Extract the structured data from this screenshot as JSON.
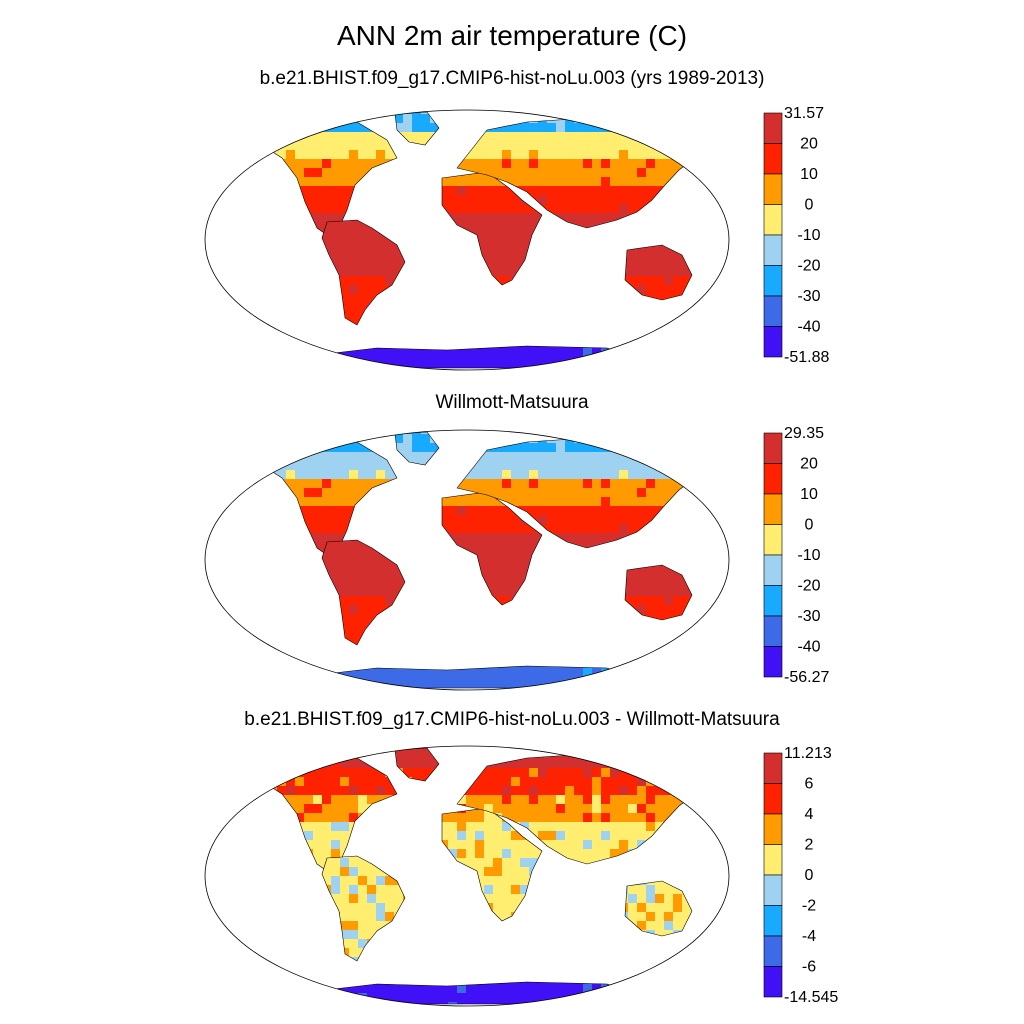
{
  "figure": {
    "title": "ANN 2m air temperature (C)",
    "panels": [
      {
        "title": "b.e21.BHIST.f09_g17.CMIP6-hist-noLu.003 (yrs 1989-2013)",
        "colorbar": {
          "labels": [
            "31.57",
            "20",
            "10",
            "0",
            "-10",
            "-20",
            "-30",
            "-40",
            "-51.88"
          ],
          "colors": [
            "#d42f2f",
            "#ff2200",
            "#ff9a00",
            "#ffee70",
            "#9fd2f0",
            "#17aaff",
            "#3d6ae6",
            "#4011f6"
          ]
        }
      },
      {
        "title": "Willmott-Matsuura",
        "colorbar": {
          "labels": [
            "29.35",
            "20",
            "10",
            "0",
            "-10",
            "-20",
            "-30",
            "-40",
            "-56.27"
          ],
          "colors": [
            "#d42f2f",
            "#ff2200",
            "#ff9a00",
            "#ffee70",
            "#9fd2f0",
            "#17aaff",
            "#3d6ae6",
            "#4011f6"
          ]
        }
      },
      {
        "title": "b.e21.BHIST.f09_g17.CMIP6-hist-noLu.003 - Willmott-Matsuura",
        "colorbar": {
          "labels": [
            "11.213",
            "6",
            "4",
            "2",
            "0",
            "-2",
            "-4",
            "-6",
            "-14.545"
          ],
          "colors": [
            "#d42f2f",
            "#ff2200",
            "#ff9a00",
            "#ffee70",
            "#9fd2f0",
            "#17aaff",
            "#3d6ae6",
            "#4011f6"
          ]
        }
      }
    ]
  }
}
